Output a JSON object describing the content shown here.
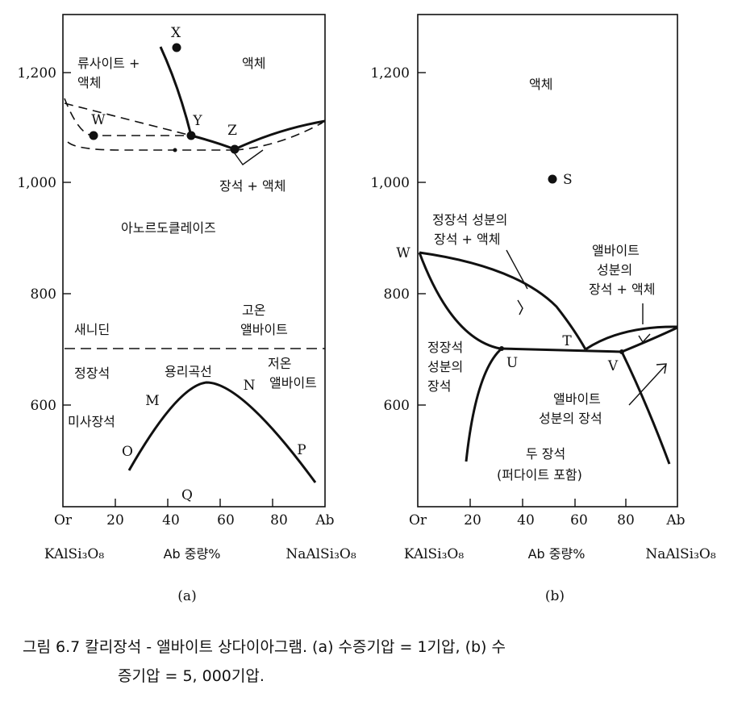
{
  "panel_a": {
    "y_ticks": [
      "1,200",
      "1,000",
      "800",
      "600"
    ],
    "x_ticks": [
      "Or",
      "20",
      "40",
      "60",
      "80",
      "Ab"
    ],
    "x_left_formula": "KAlSi₃O₈",
    "x_axis_label": "Ab 중량%",
    "x_right_formula": "NaAlSi₃O₈",
    "sub_label": "(a)",
    "regions": {
      "leucite_liquid_1": "류사이트 +",
      "leucite_liquid_2": "액체",
      "liquid": "액체",
      "feldspar_liquid": "장석 + 액체",
      "anorthoclase": "아노르도클레이즈",
      "high_albite_1": "고온",
      "high_albite_2": "앨바이트",
      "sanidine": "새니딘",
      "solvus": "용리곡선",
      "orthoclase": "정장석",
      "low_albite_1": "저온",
      "low_albite_2": "앨바이트",
      "microcline": "미사장석"
    },
    "points": {
      "X": "X",
      "Y": "Y",
      "Z": "Z",
      "W": "W",
      "M": "M",
      "N": "N",
      "O": "O",
      "P": "P",
      "Q": "Q"
    }
  },
  "panel_b": {
    "y_ticks": [
      "1,200",
      "1,000",
      "800",
      "600"
    ],
    "x_ticks": [
      "Or",
      "20",
      "40",
      "60",
      "80",
      "Ab"
    ],
    "x_left_formula": "KAlSi₃O₈",
    "x_axis_label": "Ab 중량%",
    "x_right_formula": "NaAlSi₃O₈",
    "sub_label": "(b)",
    "regions": {
      "liquid": "액체",
      "or_feldspar_liquid_1": "정장석 성분의",
      "or_feldspar_liquid_2": "장석 + 액체",
      "ab_feldspar_liquid_1": "앨바이트",
      "ab_feldspar_liquid_2": "성분의",
      "ab_feldspar_liquid_3": "장석 + 액체",
      "or_feldspar_1": "정장석",
      "or_feldspar_2": "성분의",
      "or_feldspar_3": "장석",
      "ab_feldspar_1": "앨바이트",
      "ab_feldspar_2": "성분의 장석",
      "two_feldspars_1": "두 장석",
      "two_feldspars_2": "(퍼다이트 포함)"
    },
    "points": {
      "S": "S",
      "W": "W",
      "T": "T",
      "U": "U",
      "V": "V"
    }
  },
  "caption": {
    "line1": "그림 6.7  칼리장석 - 앨바이트 상다이아그램. (a) 수증기압 = 1기압, (b) 수",
    "line2": "증기압 = 5, 000기압."
  },
  "colors": {
    "ink": "#111111",
    "background": "#ffffff"
  }
}
